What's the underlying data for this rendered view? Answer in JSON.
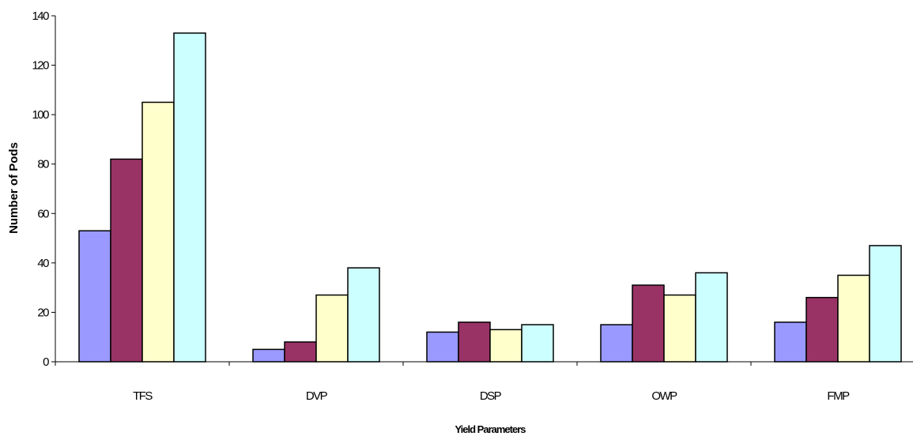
{
  "chart_data": {
    "type": "bar",
    "title": "",
    "xlabel": "Yield Parameters",
    "ylabel": "Number of Pods",
    "categories": [
      "TFS",
      "DVP",
      "DSP",
      "OWP",
      "FMP"
    ],
    "ylim": [
      0,
      140
    ],
    "yticks": [
      0,
      20,
      40,
      60,
      80,
      100,
      120,
      140
    ],
    "grid": false,
    "legend": "none",
    "series": [
      {
        "color": "#9999ff",
        "values": [
          53,
          5,
          12,
          15,
          16
        ]
      },
      {
        "color": "#993366",
        "values": [
          82,
          8,
          16,
          31,
          26
        ]
      },
      {
        "color": "#ffffcc",
        "values": [
          105,
          27,
          13,
          27,
          35
        ]
      },
      {
        "color": "#ccffff",
        "values": [
          133,
          38,
          15,
          36,
          47
        ]
      }
    ]
  }
}
